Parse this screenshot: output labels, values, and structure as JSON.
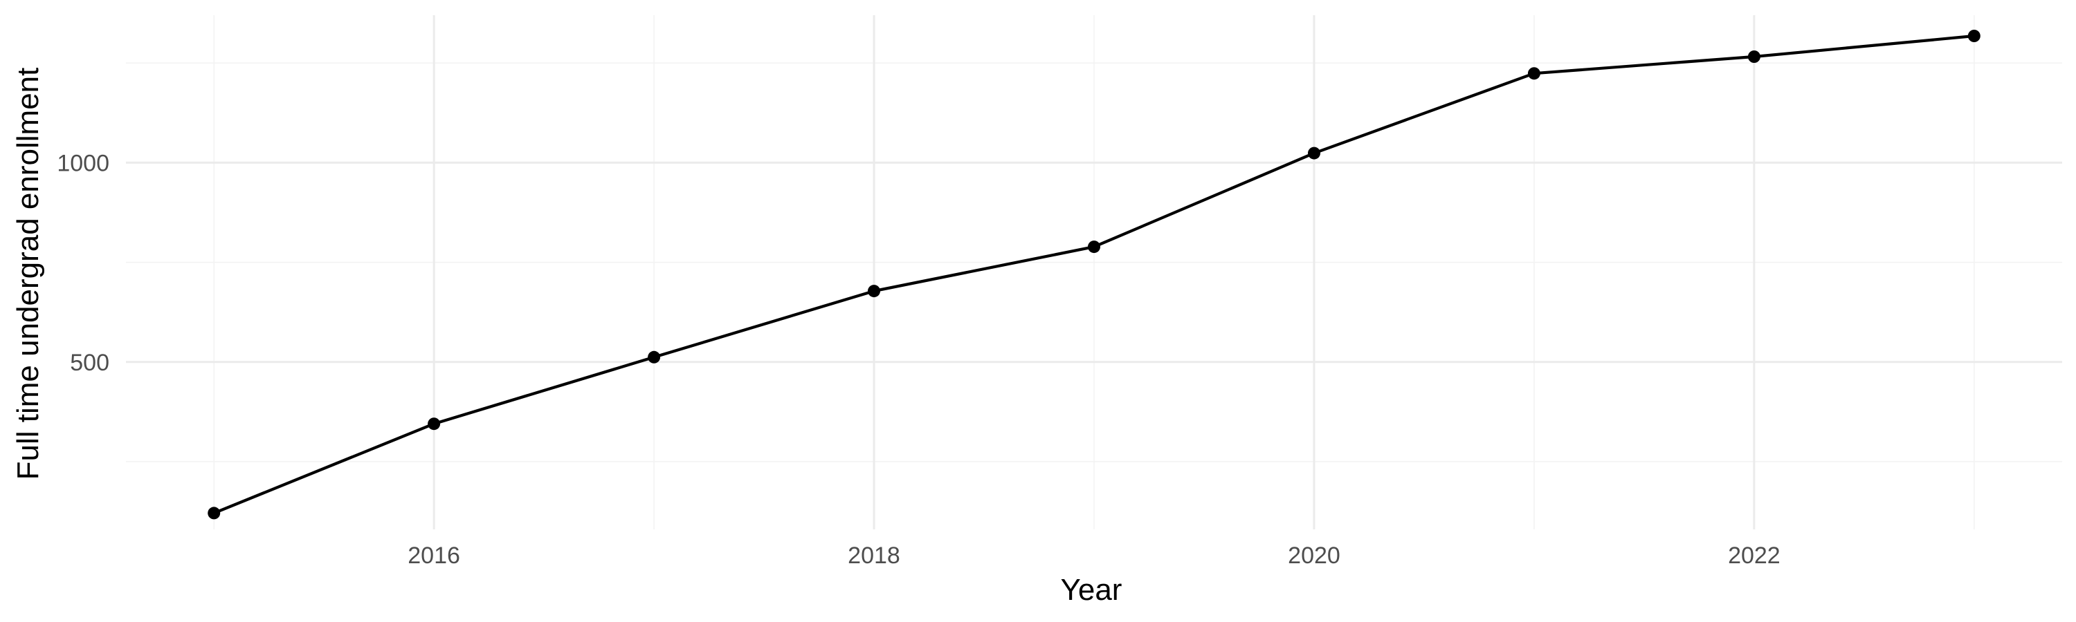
{
  "chart_data": {
    "type": "line",
    "title": "",
    "xlabel": "Year",
    "ylabel": "Full time undergrad enrollment",
    "x": [
      2015,
      2016,
      2017,
      2018,
      2019,
      2020,
      2021,
      2022,
      2023
    ],
    "series": [
      {
        "values": [
          121,
          345,
          512,
          678,
          789,
          1024,
          1224,
          1266,
          1318
        ]
      }
    ],
    "xlim": [
      2014.6,
      2023.4
    ],
    "ylim": [
      80,
      1370
    ],
    "x_ticks": [
      2016,
      2018,
      2020,
      2022
    ],
    "x_tick_labels": [
      "2016",
      "2018",
      "2020",
      "2022"
    ],
    "x_minor_ticks": [
      2015,
      2017,
      2019,
      2021,
      2023
    ],
    "y_ticks": [
      500,
      1000
    ],
    "y_tick_labels": [
      "500",
      "1000"
    ],
    "y_minor_ticks": [
      250,
      750,
      1250
    ],
    "grid": true,
    "legend": "none",
    "colors": {
      "line": "#000000",
      "point": "#000000",
      "grid_major": "#ebebeb",
      "grid_minor": "#f3f3f3",
      "tick_text": "#4d4d4d",
      "axis_title": "#000000"
    }
  }
}
